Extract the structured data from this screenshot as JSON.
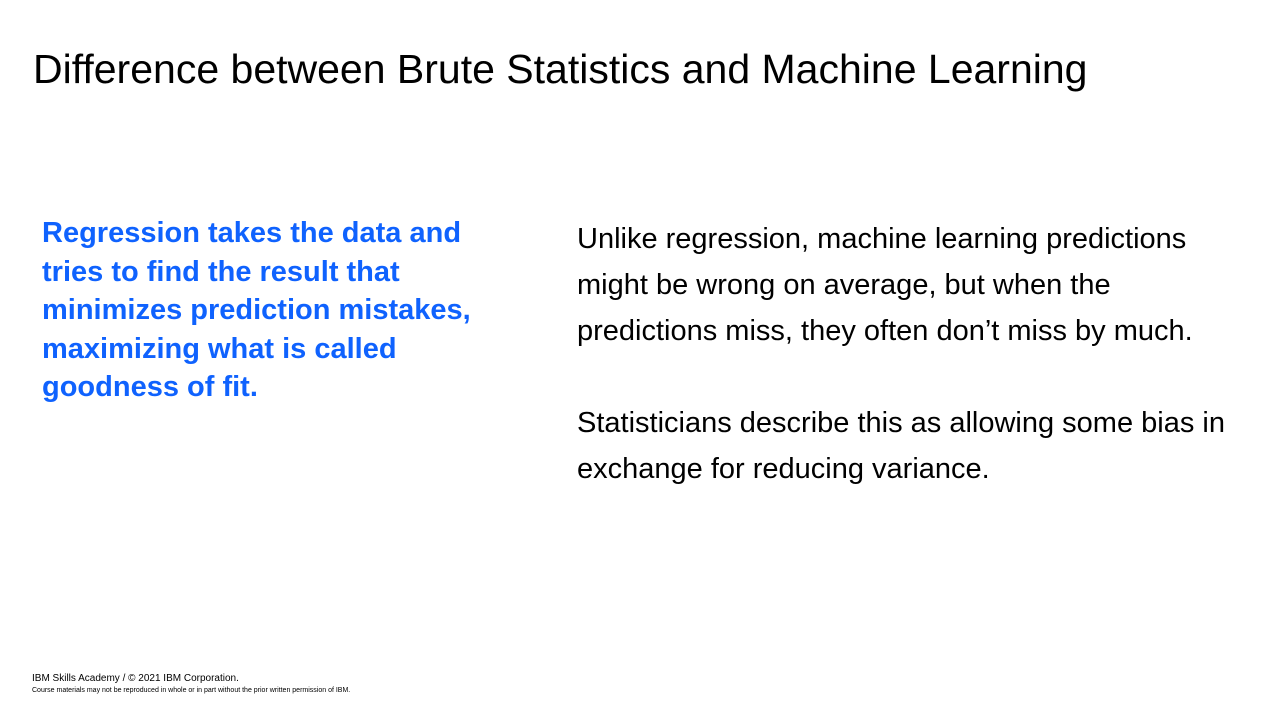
{
  "slide": {
    "title": "Difference between Brute Statistics and Machine Learning",
    "left_text": "Regression takes the data and tries to find the result that minimizes prediction mistakes, maximizing what is called goodness of fit.",
    "right_paragraphs": [
      "Unlike regression, machine learning predictions might be wrong on average, but when the predictions miss, they often don’t miss by much.",
      "Statisticians describe this as allowing some bias in exchange for reducing variance."
    ],
    "accent_color": "#0f62fe"
  },
  "footer": {
    "copyright": "IBM Skills Academy / © 2021 IBM Corporation.",
    "notice": "Course materials may not be reproduced in whole or in part without the prior written permission of IBM."
  }
}
